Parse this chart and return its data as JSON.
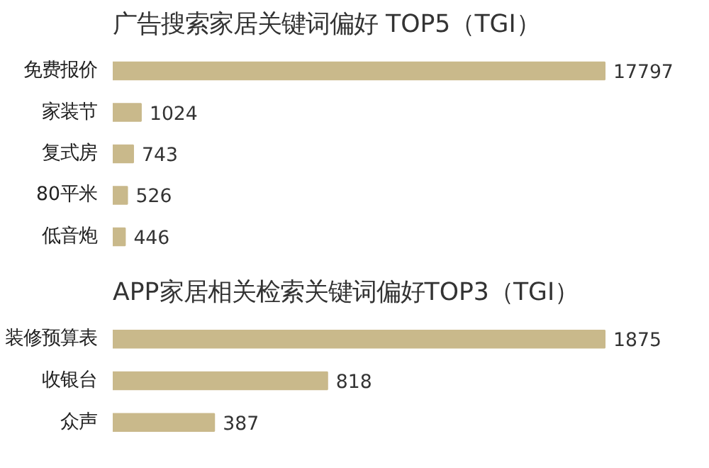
{
  "chart_data": [
    {
      "type": "bar",
      "orientation": "horizontal",
      "title": "广告搜索家居关键词偏好 TOP5（TGI）",
      "categories": [
        "免费报价",
        "家装节",
        "复式房",
        "80平米",
        "低音炮"
      ],
      "values": [
        17797,
        1024,
        743,
        526,
        446
      ],
      "color": "#c9b98b",
      "data_labels": true
    },
    {
      "type": "bar",
      "orientation": "horizontal",
      "title": "APP家居相关检索关键词偏好TOP3（TGI）",
      "categories": [
        "装修预算表",
        "收银台",
        "众声"
      ],
      "values": [
        1875,
        818,
        387
      ],
      "color": "#c9b98b",
      "data_labels": true
    }
  ]
}
